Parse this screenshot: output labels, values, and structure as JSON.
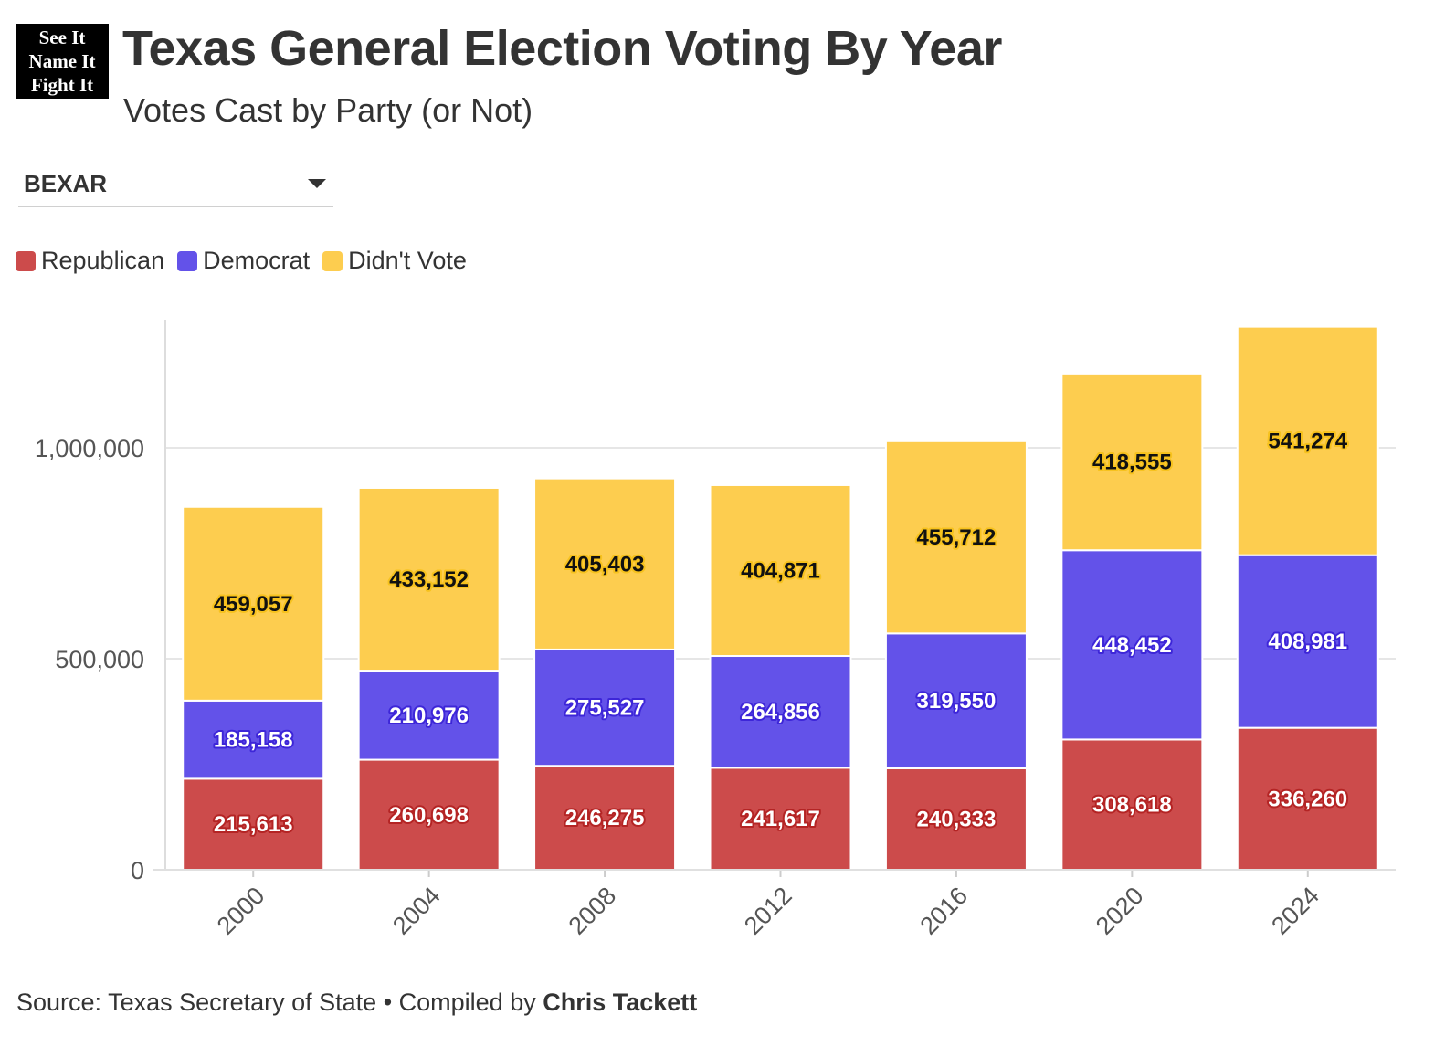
{
  "logo": {
    "line1": "See It",
    "line2": "Name It",
    "line3": "Fight It"
  },
  "header": {
    "title": "Texas General Election Voting By Year",
    "subtitle": "Votes Cast by Party (or Not)"
  },
  "dropdown": {
    "selected": "BEXAR"
  },
  "legend": [
    {
      "label": "Republican",
      "color": "#cc4b4b"
    },
    {
      "label": "Democrat",
      "color": "#6352e9"
    },
    {
      "label": "Didn't Vote",
      "color": "#fdcd4f"
    }
  ],
  "footer": {
    "source": "Source: Texas Secretary of State • Compiled by ",
    "author": "Chris Tackett"
  },
  "chart_data": {
    "type": "bar",
    "stacked": true,
    "categories": [
      "2000",
      "2004",
      "2008",
      "2012",
      "2016",
      "2020",
      "2024"
    ],
    "series": [
      {
        "name": "Republican",
        "color": "#cc4b4b",
        "label_stroke": "#b42424",
        "label_fill": "#ffffff",
        "values": [
          215613,
          260698,
          246275,
          241617,
          240333,
          308618,
          336260
        ]
      },
      {
        "name": "Democrat",
        "color": "#6352e9",
        "label_stroke": "#3d26d8",
        "label_fill": "#ffffff",
        "values": [
          185158,
          210976,
          275527,
          264856,
          319550,
          448452,
          408981
        ]
      },
      {
        "name": "Didn't Vote",
        "color": "#fdcd4f",
        "label_stroke": "#f7c21e",
        "label_fill": "#111111",
        "values": [
          459057,
          433152,
          405403,
          404871,
          455712,
          418555,
          541274
        ]
      }
    ],
    "y_ticks": [
      "0",
      "500,000",
      "1,000,000"
    ],
    "y_tick_values": [
      0,
      500000,
      1000000
    ],
    "ylim": [
      0,
      1300000
    ],
    "grid": true
  }
}
